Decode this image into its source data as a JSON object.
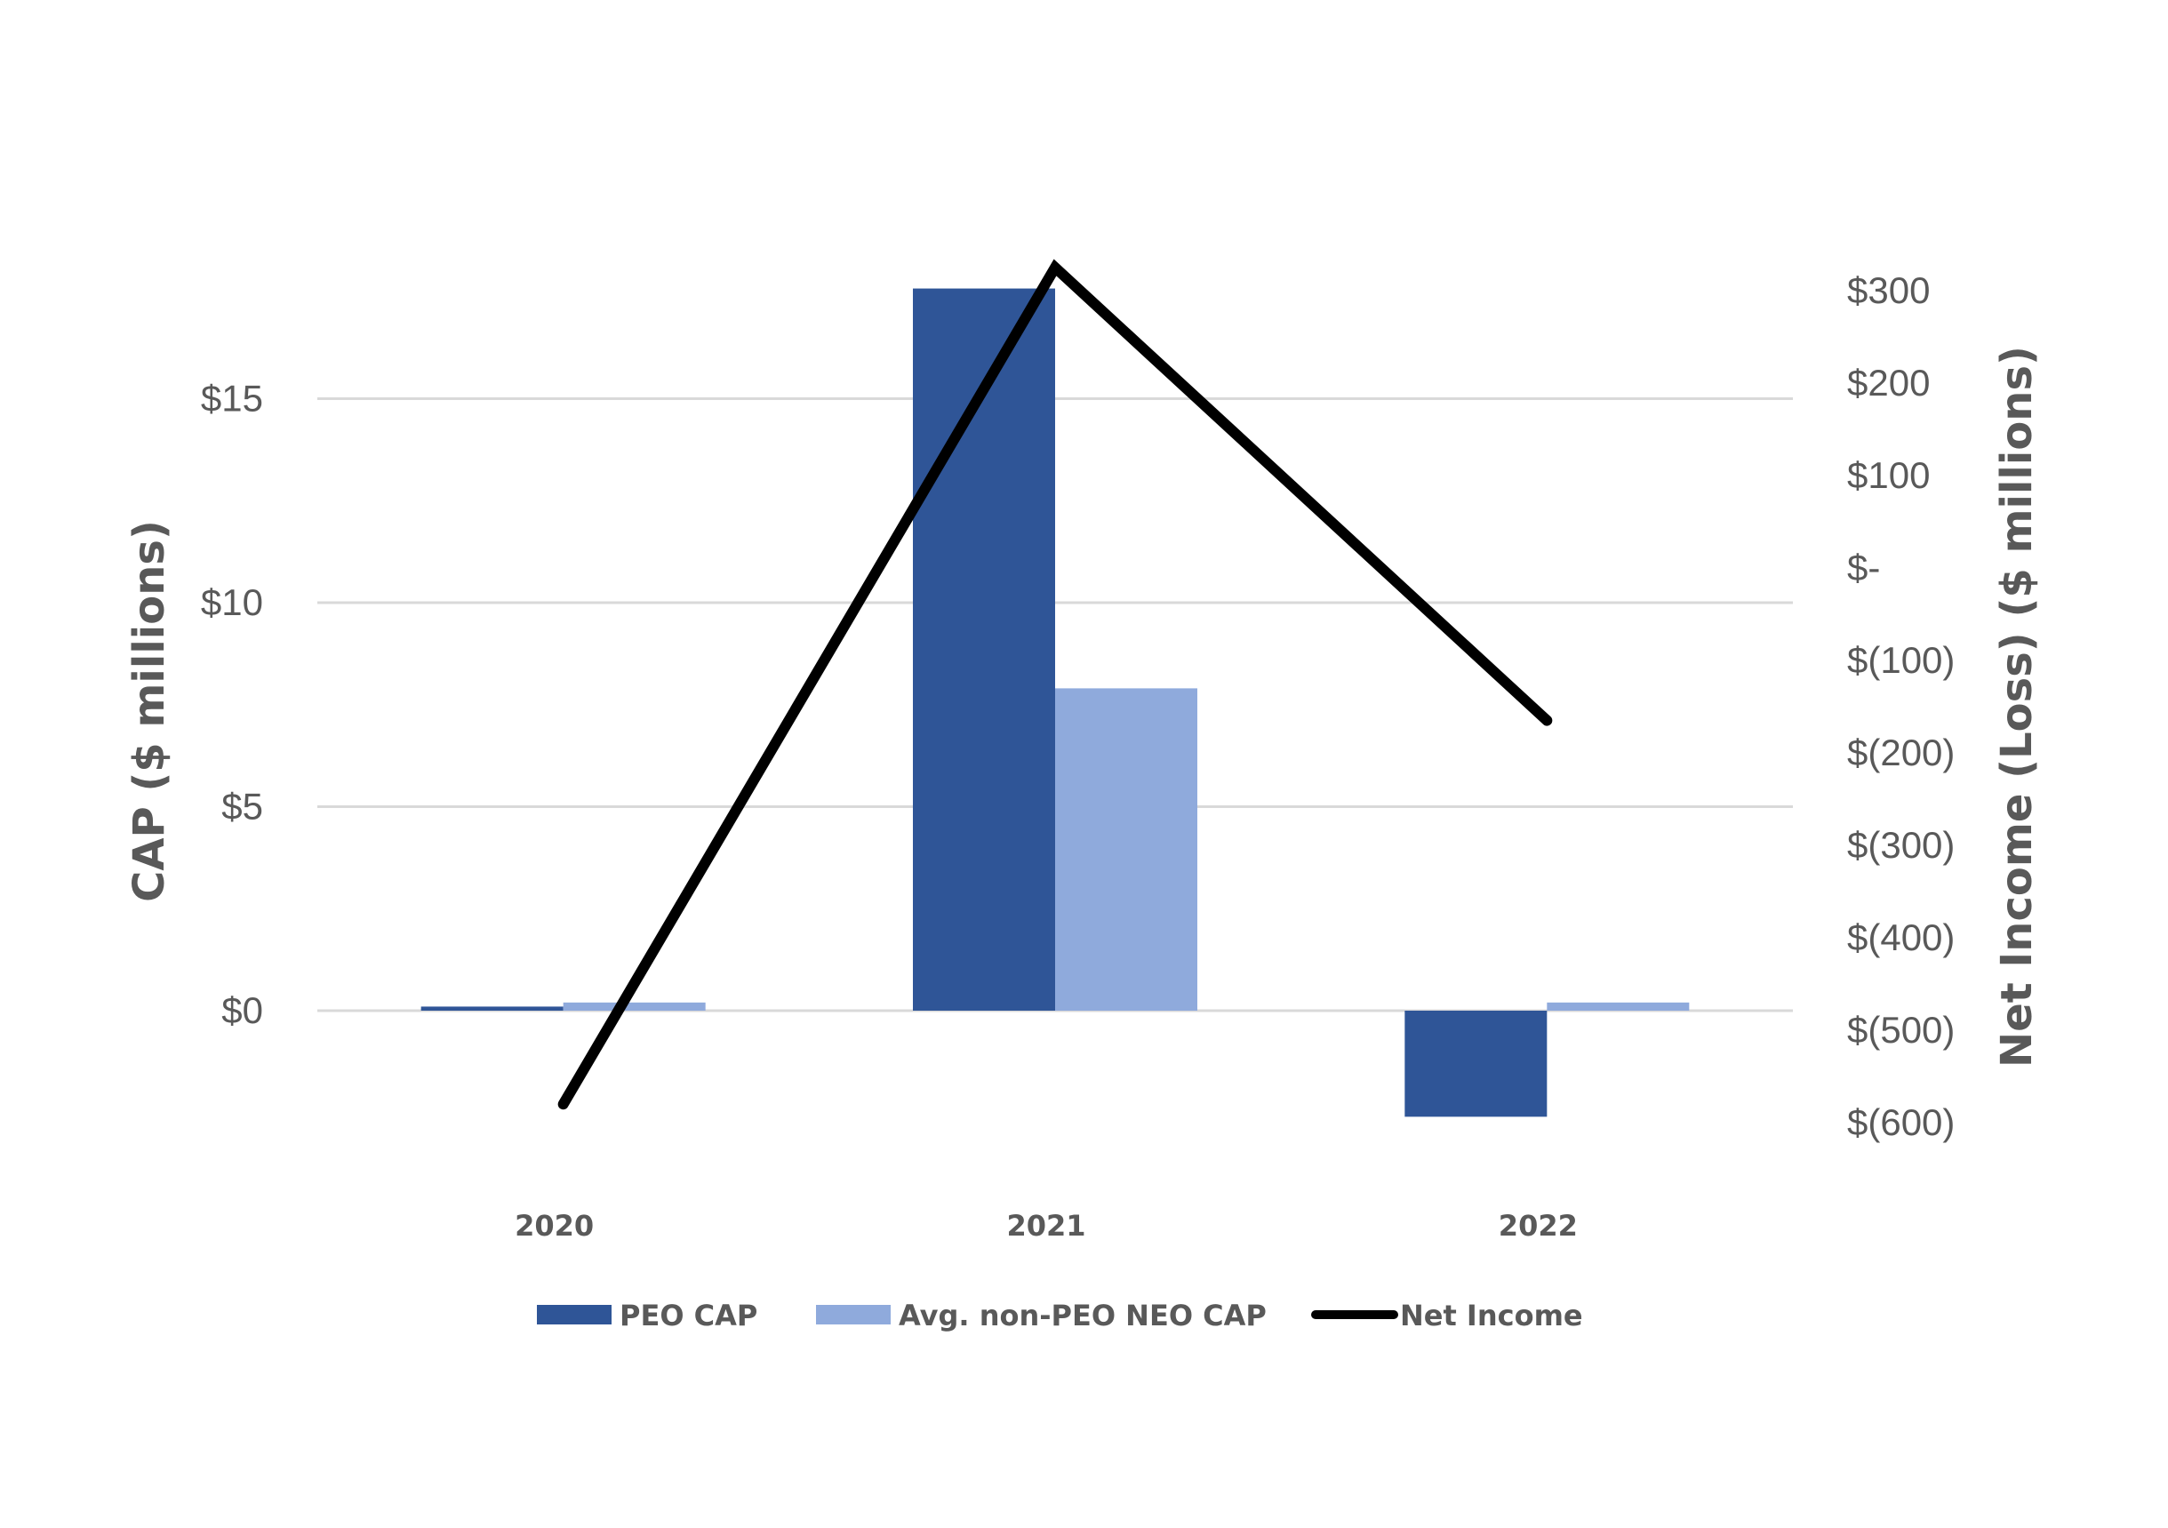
{
  "chart_data": {
    "type": "bar",
    "categories": [
      "2020",
      "2021",
      "2022"
    ],
    "series": [
      {
        "name": "PEO CAP",
        "kind": "bar",
        "axis": "left",
        "color": "#2f5597",
        "values": [
          0.1,
          17.7,
          -2.6
        ]
      },
      {
        "name": "Avg. non-PEO NEO CAP",
        "kind": "bar",
        "axis": "left",
        "color": "#8faadc",
        "values": [
          0.2,
          7.9,
          0.2
        ]
      },
      {
        "name": "Net Income",
        "kind": "line",
        "axis": "right",
        "color": "#000000",
        "values": [
          -580,
          325,
          -165
        ]
      }
    ],
    "ylabel": "CAP ($ millions)",
    "y2label": "Net Income (Loss) ($ millions)",
    "ylim": [
      -4,
      20
    ],
    "yticks": [
      0,
      5,
      10,
      15
    ],
    "ytick_labels": [
      "$0",
      "$5",
      "$10",
      "$15"
    ],
    "y2lim": [
      -600,
      300
    ],
    "y2ticks": [
      300,
      200,
      100,
      0,
      -100,
      -200,
      -300,
      -400,
      -500,
      -600
    ],
    "y2tick_labels": [
      "$300",
      "$200",
      "$100",
      "$-",
      "$(100)",
      "$(200)",
      "$(300)",
      "$(400)",
      "$(500)",
      "$(600)"
    ],
    "grid": true,
    "legend": "bottom",
    "gridline_color": "#d9d9d9",
    "text_color": "#595959"
  }
}
